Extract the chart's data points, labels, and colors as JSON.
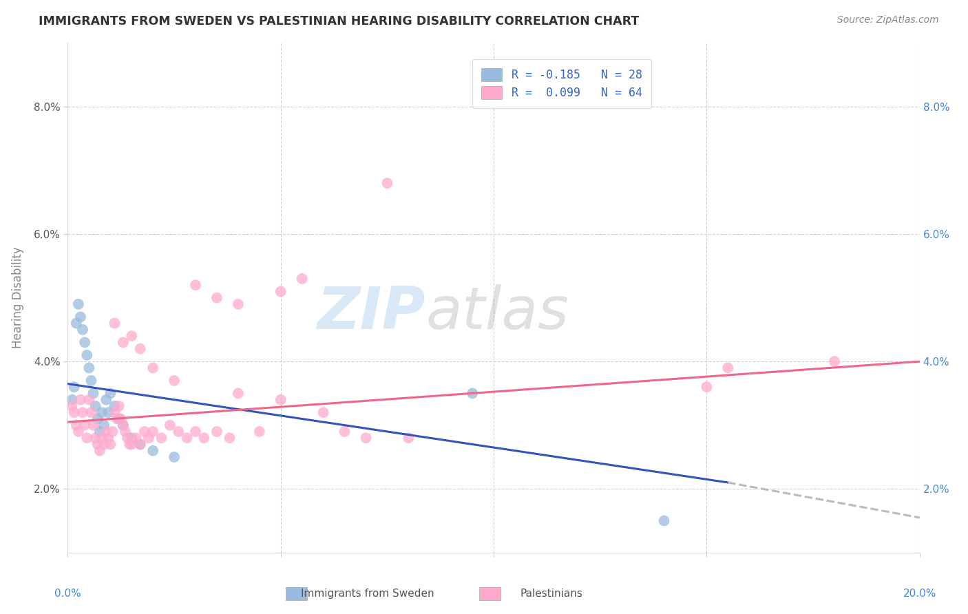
{
  "title": "IMMIGRANTS FROM SWEDEN VS PALESTINIAN HEARING DISABILITY CORRELATION CHART",
  "source_text": "Source: ZipAtlas.com",
  "ylabel": "Hearing Disability",
  "xlim": [
    0.0,
    20.0
  ],
  "ylim": [
    1.0,
    9.0
  ],
  "yticks": [
    2.0,
    4.0,
    6.0,
    8.0
  ],
  "legend_entry1": "R = -0.185   N = 28",
  "legend_entry2": "R =  0.099   N = 64",
  "legend_label1": "Immigrants from Sweden",
  "legend_label2": "Palestinians",
  "blue_color": "#99BBDD",
  "pink_color": "#FFAACC",
  "trend_blue": "#3355BB",
  "trend_pink": "#EE6688",
  "trend_gray": "#BBBBBB",
  "background_color": "#FFFFFF",
  "grid_color": "#CCCCCC",
  "blue_points_x": [
    0.1,
    0.15,
    0.2,
    0.25,
    0.3,
    0.35,
    0.4,
    0.45,
    0.5,
    0.55,
    0.6,
    0.65,
    0.7,
    0.75,
    0.8,
    0.85,
    0.9,
    0.95,
    1.0,
    1.1,
    1.2,
    1.3,
    1.5,
    1.7,
    2.0,
    2.5,
    9.5,
    14.0
  ],
  "blue_points_y": [
    3.4,
    3.6,
    4.6,
    4.9,
    4.7,
    4.5,
    4.3,
    4.1,
    3.9,
    3.7,
    3.5,
    3.3,
    3.1,
    2.9,
    3.2,
    3.0,
    3.4,
    3.2,
    3.5,
    3.3,
    3.1,
    3.0,
    2.8,
    2.7,
    2.6,
    2.5,
    3.5,
    1.5
  ],
  "pink_points_x": [
    0.1,
    0.15,
    0.2,
    0.25,
    0.3,
    0.35,
    0.4,
    0.45,
    0.5,
    0.55,
    0.6,
    0.65,
    0.7,
    0.75,
    0.8,
    0.85,
    0.9,
    0.95,
    1.0,
    1.05,
    1.1,
    1.15,
    1.2,
    1.25,
    1.3,
    1.35,
    1.4,
    1.45,
    1.5,
    1.6,
    1.7,
    1.8,
    1.9,
    2.0,
    2.2,
    2.4,
    2.6,
    2.8,
    3.0,
    3.2,
    3.5,
    3.8,
    4.0,
    4.5,
    5.0,
    5.5,
    6.0,
    6.5,
    7.0,
    8.0,
    1.1,
    1.3,
    1.5,
    1.7,
    2.0,
    2.5,
    3.0,
    3.5,
    4.0,
    5.0,
    7.5,
    15.0,
    15.5,
    18.0
  ],
  "pink_points_y": [
    3.3,
    3.2,
    3.0,
    2.9,
    3.4,
    3.2,
    3.0,
    2.8,
    3.4,
    3.2,
    3.0,
    2.8,
    2.7,
    2.6,
    2.8,
    2.7,
    2.9,
    2.8,
    2.7,
    2.9,
    3.2,
    3.1,
    3.3,
    3.1,
    3.0,
    2.9,
    2.8,
    2.7,
    2.7,
    2.8,
    2.7,
    2.9,
    2.8,
    2.9,
    2.8,
    3.0,
    2.9,
    2.8,
    2.9,
    2.8,
    2.9,
    2.8,
    3.5,
    2.9,
    5.1,
    5.3,
    3.2,
    2.9,
    2.8,
    2.8,
    4.6,
    4.3,
    4.4,
    4.2,
    3.9,
    3.7,
    5.2,
    5.0,
    4.9,
    3.4,
    6.8,
    3.6,
    3.9,
    4.0
  ],
  "watermark_zip": "ZIP",
  "watermark_atlas": "atlas",
  "blue_trend_x0": 0.0,
  "blue_trend_y0": 3.65,
  "blue_trend_x1": 15.5,
  "blue_trend_y1": 2.1,
  "blue_dash_x0": 15.5,
  "blue_dash_y0": 2.1,
  "blue_dash_x1": 20.0,
  "blue_dash_y1": 1.55,
  "pink_trend_x0": 0.0,
  "pink_trend_y0": 3.05,
  "pink_trend_x1": 20.0,
  "pink_trend_y1": 4.0
}
